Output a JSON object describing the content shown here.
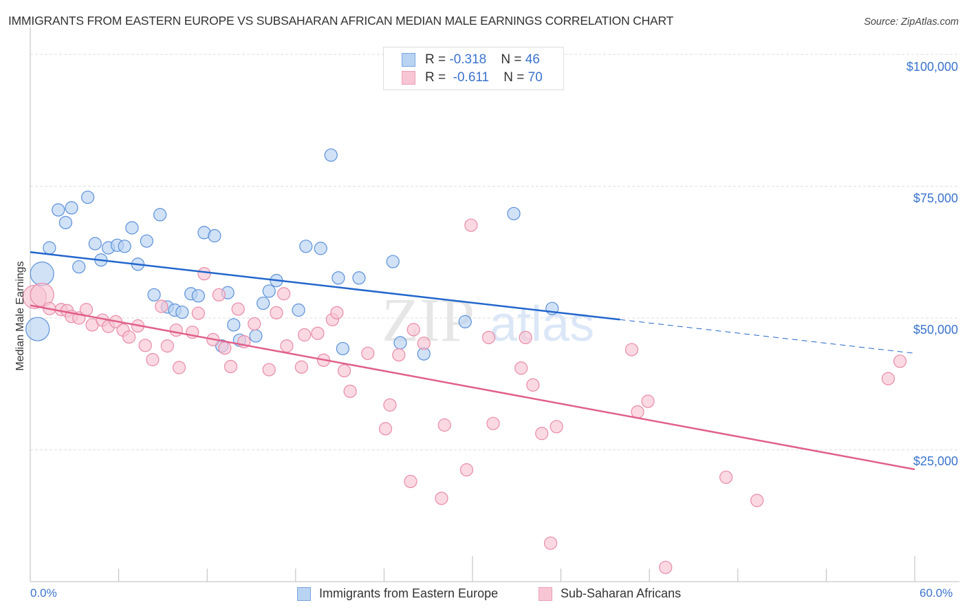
{
  "header": {
    "title": "IMMIGRANTS FROM EASTERN EUROPE VS SUBSAHARAN AFRICAN MEDIAN MALE EARNINGS CORRELATION CHART",
    "source": "Source: ZipAtlas.com"
  },
  "legend": {
    "rows": [
      {
        "r_label": "R = ",
        "r_value": "-0.318",
        "n_label": "N = ",
        "n_value": "46"
      },
      {
        "r_label": "R = ",
        "r_value": " -0.611",
        "n_label": "N = ",
        "n_value": "70"
      }
    ]
  },
  "colors": {
    "blue_fill": "#b9d3f3",
    "blue_stroke": "#5a8fd8",
    "blue_line": "#2266cc",
    "pink_fill": "#f8c5d4",
    "pink_stroke": "#e88aa6",
    "pink_line": "#e0608a",
    "axis_text": "#3a73cc"
  },
  "watermark": {
    "zip": "ZIP",
    "atlas": "atlas"
  },
  "chart_data": {
    "type": "scatter",
    "title": "IMMIGRANTS FROM EASTERN EUROPE VS SUBSAHARAN AFRICAN MEDIAN MALE EARNINGS CORRELATION CHART",
    "xlabel": "",
    "ylabel": "Median Male Earnings",
    "xlim": [
      0,
      60
    ],
    "ylim": [
      0,
      100000
    ],
    "x_tick_labels": [
      "0.0%",
      "60.0%"
    ],
    "y_ticks": [
      25000,
      50000,
      75000,
      100000
    ],
    "y_tick_labels": [
      "$25,000",
      "$50,000",
      "$75,000",
      "$100,000"
    ],
    "grid": true,
    "legend_position": "bottom",
    "series": [
      {
        "name": "Immigrants from Eastern Europe",
        "R": -0.318,
        "N": 46,
        "trend": {
          "x0": 0,
          "y0": 62500,
          "x1": 40,
          "y1": 49700,
          "dashed_to_x": 60,
          "dashed_to_y": 43300
        },
        "points": [
          {
            "x": 0.5,
            "y": 47900,
            "size": "large"
          },
          {
            "x": 0.8,
            "y": 58400,
            "size": "large"
          },
          {
            "x": 1.3,
            "y": 63300
          },
          {
            "x": 1.9,
            "y": 70500
          },
          {
            "x": 2.4,
            "y": 68100
          },
          {
            "x": 2.8,
            "y": 70900
          },
          {
            "x": 3.3,
            "y": 59700
          },
          {
            "x": 3.9,
            "y": 72900
          },
          {
            "x": 4.4,
            "y": 64100
          },
          {
            "x": 4.8,
            "y": 61000
          },
          {
            "x": 5.3,
            "y": 63300
          },
          {
            "x": 5.9,
            "y": 63800
          },
          {
            "x": 6.4,
            "y": 63600
          },
          {
            "x": 6.9,
            "y": 67100
          },
          {
            "x": 7.3,
            "y": 60200
          },
          {
            "x": 7.9,
            "y": 64600
          },
          {
            "x": 8.4,
            "y": 54400
          },
          {
            "x": 8.8,
            "y": 69600
          },
          {
            "x": 9.3,
            "y": 52100
          },
          {
            "x": 9.8,
            "y": 51500
          },
          {
            "x": 10.3,
            "y": 51100
          },
          {
            "x": 10.9,
            "y": 54600
          },
          {
            "x": 11.4,
            "y": 54200
          },
          {
            "x": 11.8,
            "y": 66200
          },
          {
            "x": 12.5,
            "y": 65600
          },
          {
            "x": 13.4,
            "y": 54800
          },
          {
            "x": 13.8,
            "y": 48700
          },
          {
            "x": 13.0,
            "y": 44700
          },
          {
            "x": 14.2,
            "y": 45800
          },
          {
            "x": 15.3,
            "y": 46600
          },
          {
            "x": 15.8,
            "y": 52800
          },
          {
            "x": 16.2,
            "y": 55100
          },
          {
            "x": 16.7,
            "y": 57100
          },
          {
            "x": 18.2,
            "y": 51500
          },
          {
            "x": 18.7,
            "y": 63600
          },
          {
            "x": 19.7,
            "y": 63200
          },
          {
            "x": 20.4,
            "y": 80900
          },
          {
            "x": 20.9,
            "y": 57600
          },
          {
            "x": 21.2,
            "y": 44200
          },
          {
            "x": 22.3,
            "y": 57600
          },
          {
            "x": 24.6,
            "y": 60700
          },
          {
            "x": 25.1,
            "y": 45300
          },
          {
            "x": 26.7,
            "y": 43200
          },
          {
            "x": 29.5,
            "y": 49300
          },
          {
            "x": 32.8,
            "y": 69800
          },
          {
            "x": 35.4,
            "y": 51800
          }
        ]
      },
      {
        "name": "Sub-Saharan Africans",
        "R": -0.611,
        "N": 70,
        "trend": {
          "x0": 0,
          "y0": 52400,
          "x1": 60,
          "y1": 21300
        },
        "points": [
          {
            "x": 0.3,
            "y": 54000,
            "size": "large"
          },
          {
            "x": 0.8,
            "y": 54400,
            "size": "large"
          },
          {
            "x": 1.3,
            "y": 51800
          },
          {
            "x": 2.1,
            "y": 51600
          },
          {
            "x": 2.5,
            "y": 51400
          },
          {
            "x": 2.8,
            "y": 50300
          },
          {
            "x": 3.3,
            "y": 50000
          },
          {
            "x": 3.8,
            "y": 51600
          },
          {
            "x": 4.2,
            "y": 48700
          },
          {
            "x": 4.9,
            "y": 49600
          },
          {
            "x": 5.3,
            "y": 48400
          },
          {
            "x": 5.8,
            "y": 49300
          },
          {
            "x": 6.3,
            "y": 47700
          },
          {
            "x": 6.7,
            "y": 46400
          },
          {
            "x": 7.3,
            "y": 48500
          },
          {
            "x": 7.8,
            "y": 44800
          },
          {
            "x": 8.3,
            "y": 42100
          },
          {
            "x": 8.9,
            "y": 52200
          },
          {
            "x": 9.3,
            "y": 44700
          },
          {
            "x": 9.9,
            "y": 47700
          },
          {
            "x": 10.1,
            "y": 40600
          },
          {
            "x": 11.0,
            "y": 47300
          },
          {
            "x": 11.4,
            "y": 50900
          },
          {
            "x": 11.8,
            "y": 58400
          },
          {
            "x": 12.4,
            "y": 45900
          },
          {
            "x": 12.8,
            "y": 54400
          },
          {
            "x": 13.2,
            "y": 44300
          },
          {
            "x": 13.6,
            "y": 40800
          },
          {
            "x": 14.1,
            "y": 51700
          },
          {
            "x": 14.5,
            "y": 45500
          },
          {
            "x": 15.2,
            "y": 48900
          },
          {
            "x": 16.2,
            "y": 40200
          },
          {
            "x": 16.7,
            "y": 51000
          },
          {
            "x": 17.2,
            "y": 54600
          },
          {
            "x": 17.4,
            "y": 44700
          },
          {
            "x": 18.4,
            "y": 40700
          },
          {
            "x": 18.6,
            "y": 46800
          },
          {
            "x": 19.5,
            "y": 47100
          },
          {
            "x": 19.9,
            "y": 42000
          },
          {
            "x": 20.5,
            "y": 49700
          },
          {
            "x": 20.8,
            "y": 51000
          },
          {
            "x": 21.3,
            "y": 40000
          },
          {
            "x": 21.7,
            "y": 36100
          },
          {
            "x": 22.9,
            "y": 43300
          },
          {
            "x": 24.1,
            "y": 29000
          },
          {
            "x": 24.4,
            "y": 33500
          },
          {
            "x": 25.0,
            "y": 43000
          },
          {
            "x": 25.8,
            "y": 19000
          },
          {
            "x": 26.0,
            "y": 47800
          },
          {
            "x": 26.7,
            "y": 45200
          },
          {
            "x": 27.9,
            "y": 15800
          },
          {
            "x": 28.1,
            "y": 29700
          },
          {
            "x": 29.9,
            "y": 67600
          },
          {
            "x": 29.6,
            "y": 21200
          },
          {
            "x": 31.1,
            "y": 46300
          },
          {
            "x": 31.4,
            "y": 30000
          },
          {
            "x": 33.3,
            "y": 40500
          },
          {
            "x": 33.6,
            "y": 46300
          },
          {
            "x": 34.1,
            "y": 37300
          },
          {
            "x": 34.7,
            "y": 28100
          },
          {
            "x": 35.3,
            "y": 7300
          },
          {
            "x": 35.7,
            "y": 29400
          },
          {
            "x": 40.8,
            "y": 44000
          },
          {
            "x": 41.2,
            "y": 32200
          },
          {
            "x": 41.9,
            "y": 34200
          },
          {
            "x": 43.1,
            "y": 2700
          },
          {
            "x": 47.2,
            "y": 19800
          },
          {
            "x": 49.3,
            "y": 15400
          },
          {
            "x": 58.2,
            "y": 38500
          },
          {
            "x": 59.0,
            "y": 41800
          }
        ]
      }
    ]
  }
}
